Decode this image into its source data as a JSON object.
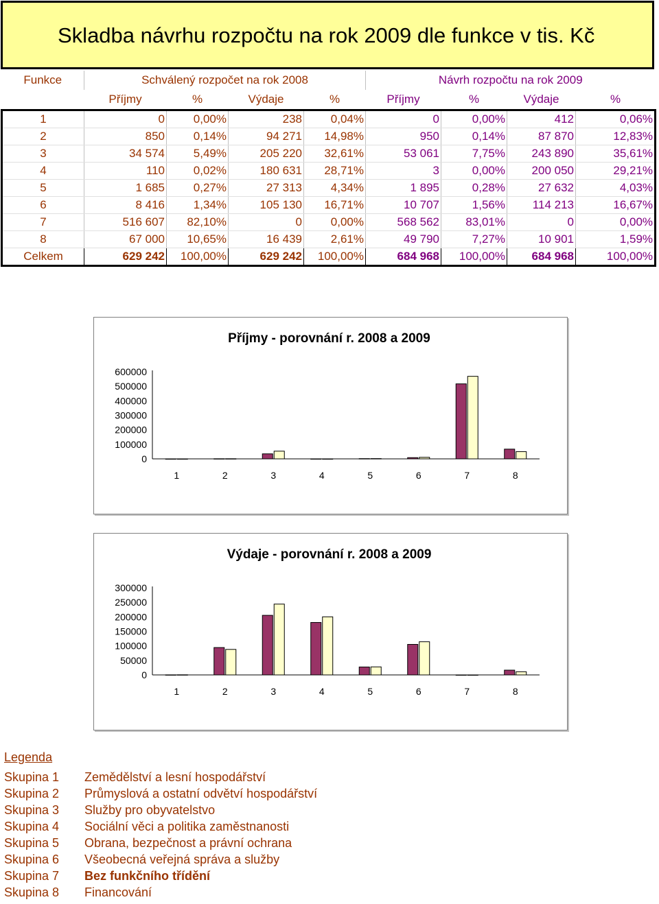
{
  "title": "Skladba návrhu rozpočtu na rok 2009 dle funkce v tis. Kč",
  "table": {
    "col_funkce": "Funkce",
    "group_2008": "Schválený rozpočet na rok 2008",
    "group_2009": "Návrh rozpočtu na rok 2009",
    "sub_headers": [
      "Příjmy",
      "%",
      "Výdaje",
      "%",
      "Příjmy",
      "%",
      "Výdaje",
      "%"
    ],
    "rows": [
      {
        "f": "1",
        "p08": "0",
        "pp08": "0,00%",
        "v08": "238",
        "vp08": "0,04%",
        "p09": "0",
        "pp09": "0,00%",
        "v09": "412",
        "vp09": "0,06%"
      },
      {
        "f": "2",
        "p08": "850",
        "pp08": "0,14%",
        "v08": "94 271",
        "vp08": "14,98%",
        "p09": "950",
        "pp09": "0,14%",
        "v09": "87 870",
        "vp09": "12,83%"
      },
      {
        "f": "3",
        "p08": "34 574",
        "pp08": "5,49%",
        "v08": "205 220",
        "vp08": "32,61%",
        "p09": "53 061",
        "pp09": "7,75%",
        "v09": "243 890",
        "vp09": "35,61%"
      },
      {
        "f": "4",
        "p08": "110",
        "pp08": "0,02%",
        "v08": "180 631",
        "vp08": "28,71%",
        "p09": "3",
        "pp09": "0,00%",
        "v09": "200 050",
        "vp09": "29,21%"
      },
      {
        "f": "5",
        "p08": "1 685",
        "pp08": "0,27%",
        "v08": "27 313",
        "vp08": "4,34%",
        "p09": "1 895",
        "pp09": "0,28%",
        "v09": "27 632",
        "vp09": "4,03%"
      },
      {
        "f": "6",
        "p08": "8 416",
        "pp08": "1,34%",
        "v08": "105 130",
        "vp08": "16,71%",
        "p09": "10 707",
        "pp09": "1,56%",
        "v09": "114 213",
        "vp09": "16,67%"
      },
      {
        "f": "7",
        "p08": "516 607",
        "pp08": "82,10%",
        "v08": "0",
        "vp08": "0,00%",
        "p09": "568 562",
        "pp09": "83,01%",
        "v09": "0",
        "vp09": "0,00%"
      },
      {
        "f": "8",
        "p08": "67 000",
        "pp08": "10,65%",
        "v08": "16 439",
        "vp08": "2,61%",
        "p09": "49 790",
        "pp09": "7,27%",
        "v09": "10 901",
        "vp09": "1,59%"
      }
    ],
    "total": {
      "f": "Celkem",
      "p08": "629 242",
      "pp08": "100,00%",
      "v08": "629 242",
      "vp08": "100,00%",
      "p09": "684 968",
      "pp09": "100,00%",
      "v09": "684 968",
      "vp09": "100,00%"
    }
  },
  "colors": {
    "title_bg": "#ffff99",
    "brown": "#993300",
    "purple": "#800080",
    "series_2008": "#993366",
    "series_2009": "#ffffcc"
  },
  "chart_data": [
    {
      "type": "bar",
      "title": "Příjmy - porovnání r. 2008 a 2009",
      "categories": [
        "1",
        "2",
        "3",
        "4",
        "5",
        "6",
        "7",
        "8"
      ],
      "series": [
        {
          "values": [
            0,
            850,
            34574,
            110,
            1685,
            8416,
            516607,
            67000
          ]
        },
        {
          "values": [
            0,
            950,
            53061,
            3,
            1895,
            10707,
            568562,
            49790
          ]
        }
      ],
      "yticks": [
        "600000",
        "500000",
        "400000",
        "300000",
        "200000",
        "100000",
        "0"
      ],
      "ylim": [
        0,
        600000
      ],
      "grid": false,
      "legend": "none"
    },
    {
      "type": "bar",
      "title": "Výdaje - porovnání r. 2008 a 2009",
      "categories": [
        "1",
        "2",
        "3",
        "4",
        "5",
        "6",
        "7",
        "8"
      ],
      "series": [
        {
          "values": [
            238,
            94271,
            205220,
            180631,
            27313,
            105130,
            0,
            16439
          ]
        },
        {
          "values": [
            412,
            87870,
            243890,
            200050,
            27632,
            114213,
            0,
            10901
          ]
        }
      ],
      "yticks": [
        "300000",
        "250000",
        "200000",
        "150000",
        "100000",
        "50000",
        "0"
      ],
      "ylim": [
        0,
        300000
      ],
      "grid": false,
      "legend": "none"
    }
  ],
  "legend": {
    "title": "Legenda",
    "items": [
      {
        "key": "Skupina 1",
        "label": "Zemědělství a lesní hospodářství"
      },
      {
        "key": "Skupina 2",
        "label": "Průmyslová a ostatní odvětví hospodářství"
      },
      {
        "key": "Skupina 3",
        "label": "Služby pro obyvatelstvo"
      },
      {
        "key": "Skupina 4",
        "label": "Sociální věci a politika zaměstnanosti"
      },
      {
        "key": "Skupina 5",
        "label": "Obrana, bezpečnost a právní ochrana"
      },
      {
        "key": "Skupina 6",
        "label": "Všeobecná veřejná správa a služby"
      },
      {
        "key": "Skupina 7",
        "label": "Bez funkčního třídění"
      },
      {
        "key": "Skupina 8",
        "label": "Financování"
      }
    ]
  }
}
